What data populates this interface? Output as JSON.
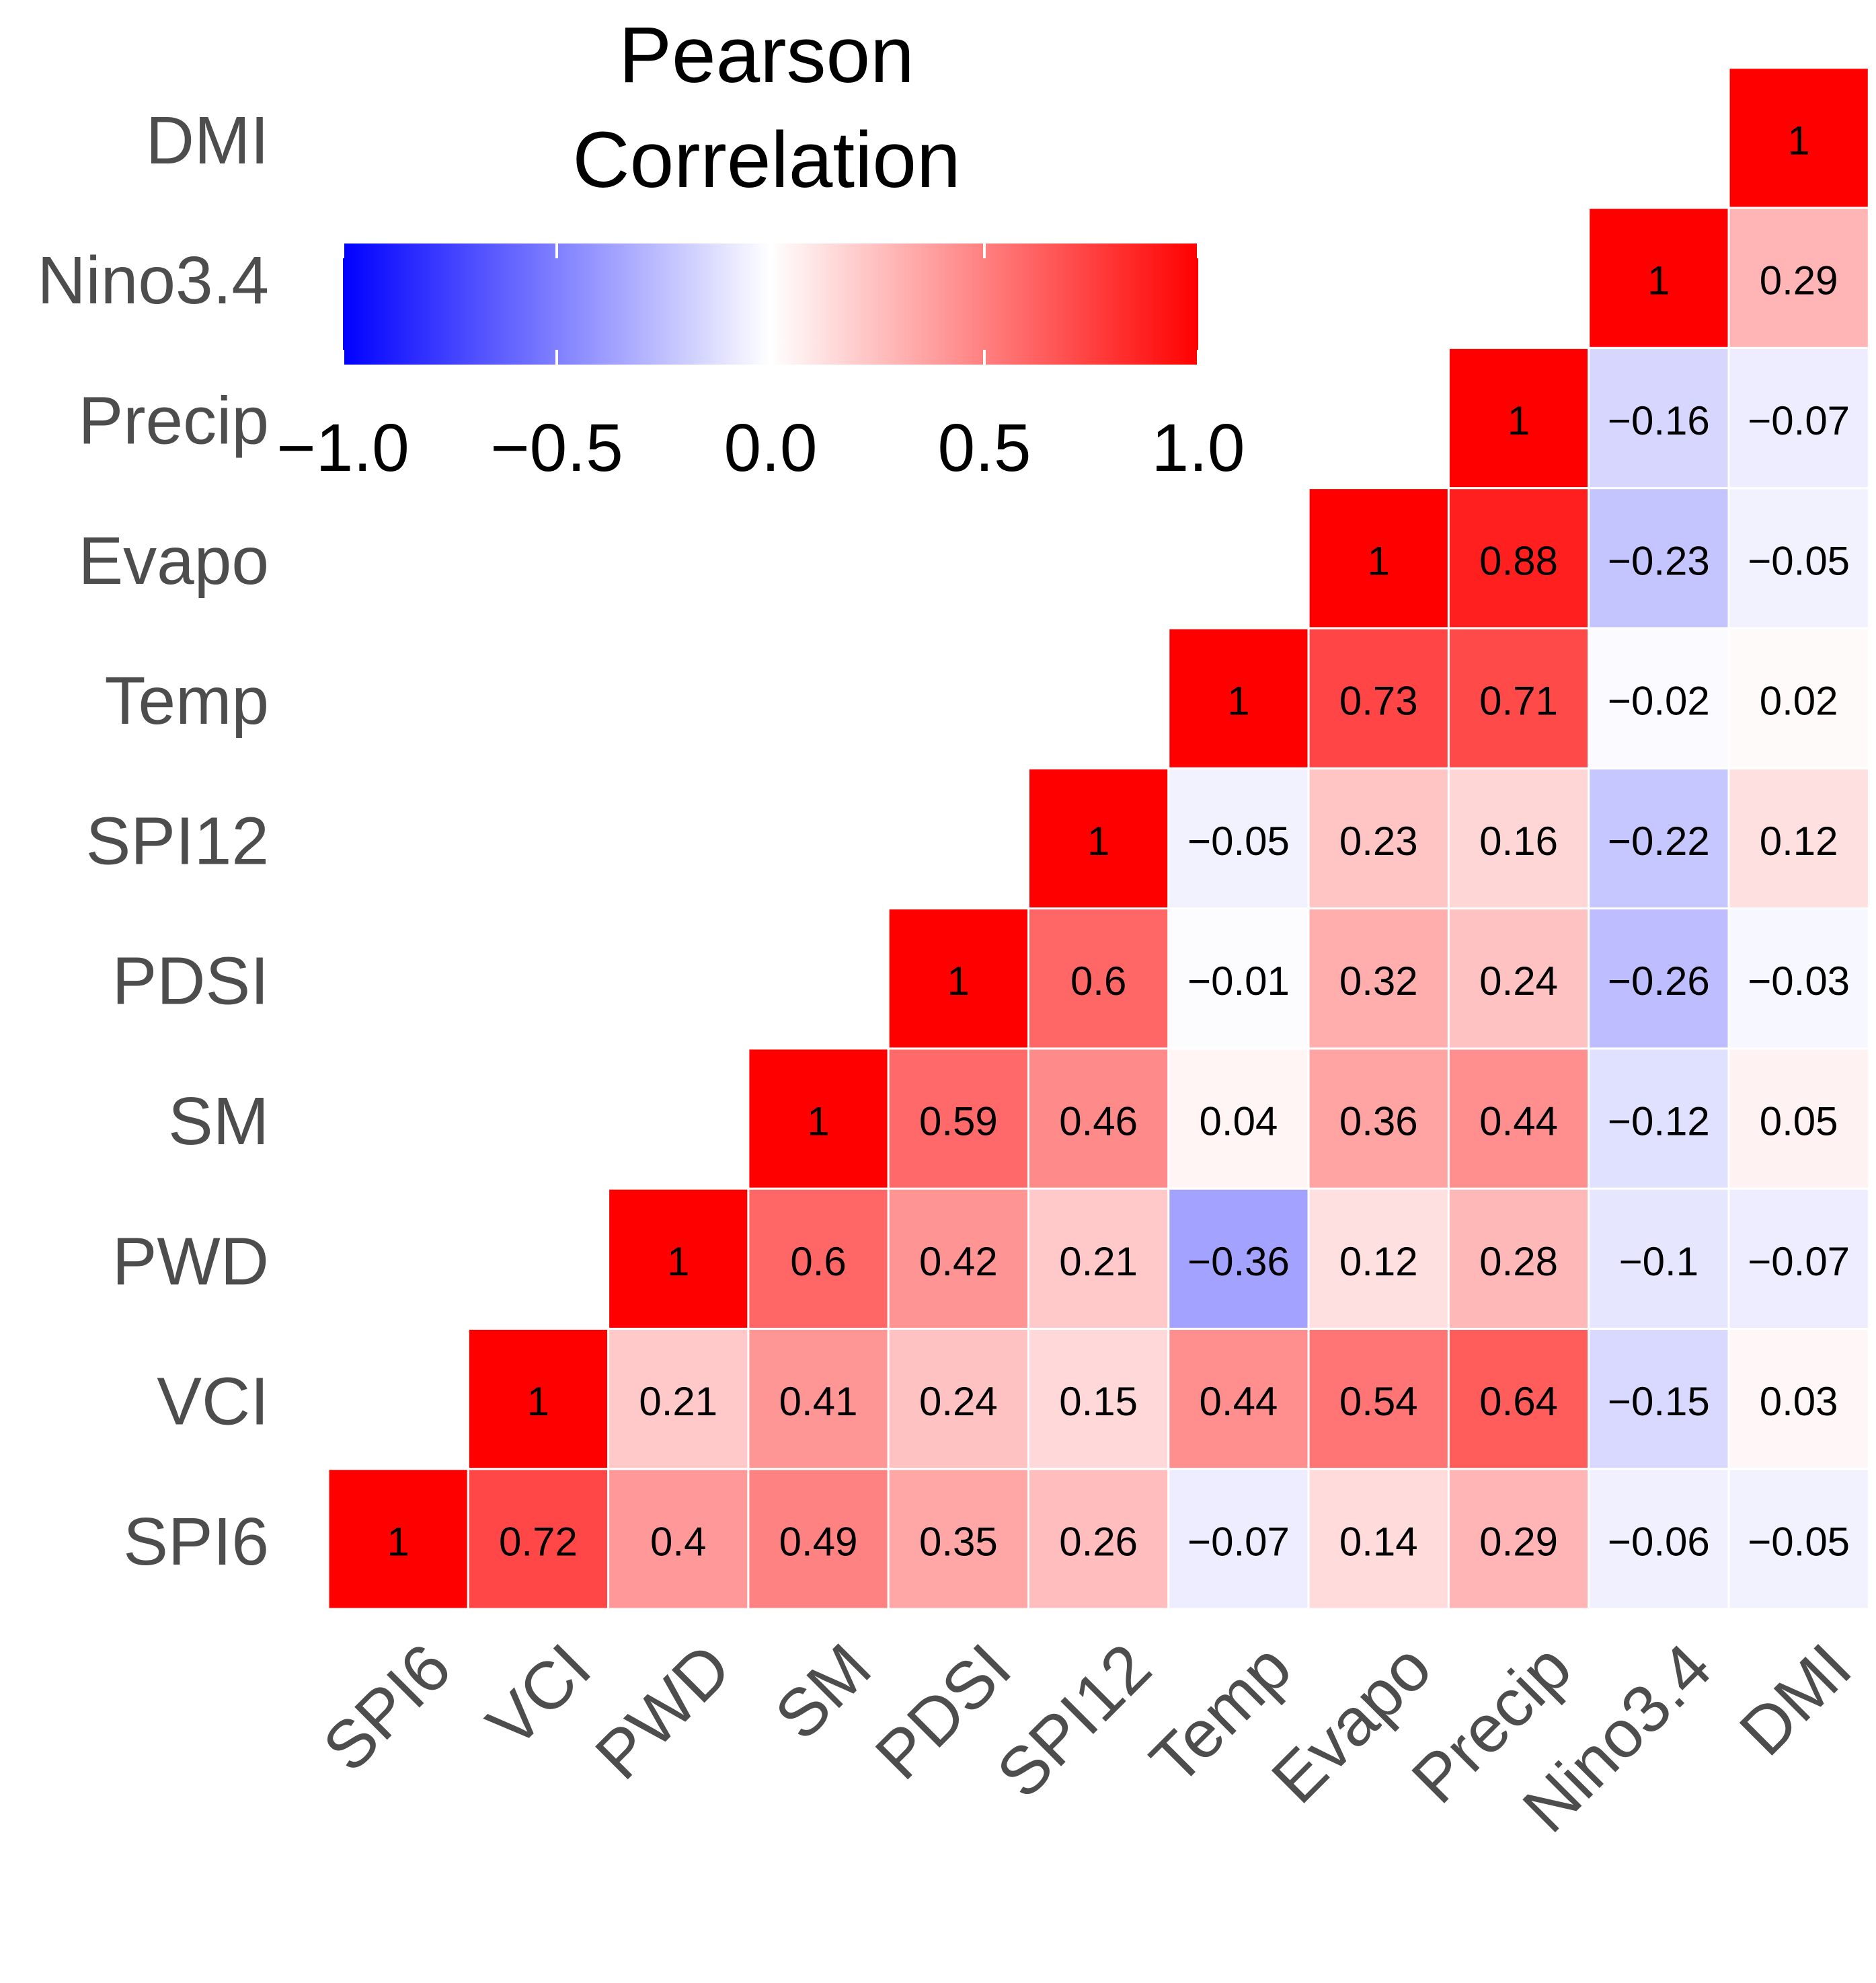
{
  "chart_data": {
    "type": "heatmap",
    "variables": [
      "SPI6",
      "VCI",
      "PWD",
      "SM",
      "PDSI",
      "SPI12",
      "Temp",
      "Evapo",
      "Precip",
      "Nino3.4",
      "DMI"
    ],
    "matrix_lower": [
      [
        "1"
      ],
      [
        "0.72",
        "1"
      ],
      [
        "0.4",
        "0.21",
        "1"
      ],
      [
        "0.49",
        "0.41",
        "0.6",
        "1"
      ],
      [
        "0.35",
        "0.24",
        "0.42",
        "0.59",
        "1"
      ],
      [
        "0.26",
        "0.15",
        "0.21",
        "0.46",
        "0.6",
        "1"
      ],
      [
        "−0.07",
        "0.44",
        "−0.36",
        "0.04",
        "−0.01",
        "−0.05",
        "1"
      ],
      [
        "0.14",
        "0.54",
        "0.12",
        "0.36",
        "0.32",
        "0.23",
        "0.73",
        "1"
      ],
      [
        "0.29",
        "0.64",
        "0.28",
        "0.44",
        "0.24",
        "0.16",
        "0.71",
        "0.88",
        "1"
      ],
      [
        "−0.06",
        "−0.15",
        "−0.1",
        "−0.12",
        "−0.26",
        "−0.22",
        "−0.02",
        "−0.23",
        "−0.16",
        "1"
      ],
      [
        "−0.05",
        "0.03",
        "−0.07",
        "0.05",
        "−0.03",
        "0.12",
        "0.02",
        "−0.05",
        "−0.07",
        "0.29",
        "1"
      ]
    ],
    "legend": {
      "title_line1": "Pearson",
      "title_line2": "Correlation",
      "range": [
        -1,
        1
      ],
      "ticks": [
        "−1.0",
        "−0.5",
        "0.0",
        "0.5",
        "1.0"
      ],
      "tick_values": [
        -1,
        -0.5,
        0,
        0.5,
        1
      ],
      "colors": {
        "low": "#0000ff",
        "mid": "#ffffff",
        "high": "#ff0000"
      }
    }
  }
}
